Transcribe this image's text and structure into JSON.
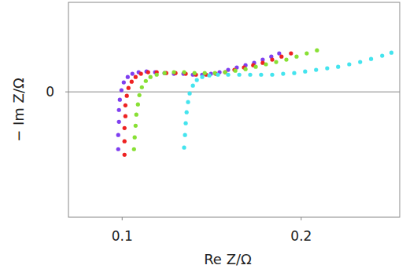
{
  "chart_data": {
    "type": "scatter",
    "x_label": "Re Z/Ω",
    "y_label": "− Im Z/Ω",
    "xlim": [
      0.07,
      0.255
    ],
    "ylim": [
      -0.07,
      0.05
    ],
    "xticks": [
      0.1,
      0.2
    ],
    "yticks": [
      0
    ],
    "grid": "y",
    "marker": "circle",
    "series": [
      {
        "color": "#7f3ff0",
        "x": [
          0.0978,
          0.0978,
          0.0982,
          0.0982,
          0.0987,
          0.0996,
          0.1009,
          0.1031,
          0.1057,
          0.1092,
          0.1136,
          0.1184,
          0.1237,
          0.1289,
          0.1342,
          0.1395,
          0.1447,
          0.1496,
          0.1544,
          0.1592,
          0.164,
          0.1689,
          0.1737,
          0.1785,
          0.1833,
          0.1877
        ],
        "values": [
          -0.032,
          -0.0241,
          -0.0167,
          -0.0101,
          -0.0044,
          0.0009,
          0.0053,
          0.0083,
          0.0101,
          0.011,
          0.0114,
          0.011,
          0.0105,
          0.0101,
          0.0101,
          0.0096,
          0.0096,
          0.0101,
          0.011,
          0.0123,
          0.0136,
          0.0149,
          0.0162,
          0.018,
          0.0197,
          0.0215
        ]
      },
      {
        "color": "#ee2222",
        "x": [
          0.1013,
          0.1013,
          0.1013,
          0.1018,
          0.1018,
          0.1026,
          0.1035,
          0.1053,
          0.1075,
          0.1105,
          0.1145,
          0.1193,
          0.1246,
          0.1298,
          0.1355,
          0.1412,
          0.1469,
          0.1522,
          0.1575,
          0.1627,
          0.168,
          0.1732,
          0.1785,
          0.1838,
          0.189,
          0.1943
        ],
        "values": [
          -0.0351,
          -0.0276,
          -0.0202,
          -0.0136,
          -0.0075,
          -0.0022,
          0.0022,
          0.0057,
          0.0083,
          0.0101,
          0.011,
          0.011,
          0.0105,
          0.0105,
          0.0101,
          0.0096,
          0.0096,
          0.0101,
          0.011,
          0.0123,
          0.0136,
          0.0149,
          0.0162,
          0.018,
          0.0197,
          0.0215
        ]
      },
      {
        "color": "#88e034",
        "x": [
          0.1066,
          0.107,
          0.1075,
          0.1079,
          0.1088,
          0.1096,
          0.111,
          0.1132,
          0.1158,
          0.1193,
          0.1237,
          0.1289,
          0.1346,
          0.1404,
          0.1461,
          0.1518,
          0.1575,
          0.1632,
          0.1689,
          0.1746,
          0.1803,
          0.186,
          0.1917,
          0.1974,
          0.2031,
          0.2088
        ],
        "values": [
          -0.032,
          -0.0254,
          -0.0189,
          -0.0127,
          -0.007,
          -0.0018,
          0.0026,
          0.0061,
          0.0083,
          0.0096,
          0.0105,
          0.011,
          0.011,
          0.0105,
          0.0105,
          0.0105,
          0.011,
          0.0118,
          0.0127,
          0.014,
          0.0154,
          0.0167,
          0.018,
          0.0197,
          0.0215,
          0.0232
        ]
      },
      {
        "color": "#44e4ee",
        "x": [
          0.1346,
          0.1351,
          0.1355,
          0.136,
          0.1368,
          0.1377,
          0.1395,
          0.1417,
          0.1447,
          0.1487,
          0.1535,
          0.1592,
          0.1654,
          0.1715,
          0.1776,
          0.1838,
          0.1899,
          0.1961,
          0.2022,
          0.2083,
          0.2145,
          0.2206,
          0.2268,
          0.2329,
          0.239,
          0.2452,
          0.2504
        ],
        "values": [
          -0.0311,
          -0.0241,
          -0.0175,
          -0.0114,
          -0.0057,
          -0.0009,
          0.0035,
          0.0066,
          0.0083,
          0.0092,
          0.0096,
          0.0096,
          0.0096,
          0.0096,
          0.0096,
          0.0096,
          0.0101,
          0.0105,
          0.0114,
          0.0123,
          0.0132,
          0.014,
          0.0154,
          0.0167,
          0.0184,
          0.0202,
          0.0219
        ]
      }
    ]
  }
}
